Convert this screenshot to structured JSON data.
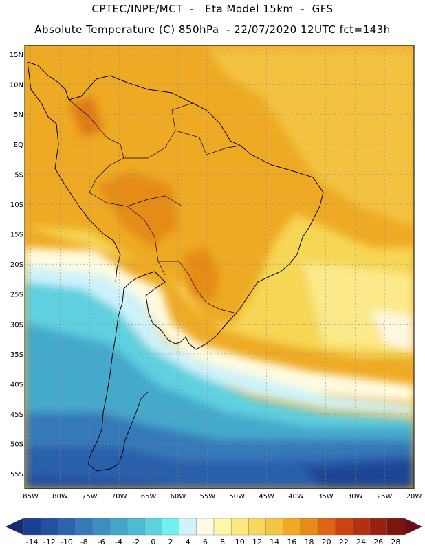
{
  "title_line1": "CPTEC/INPE/MCT  -   Eta Model 15km  -  GFS",
  "title_line2": "Absolute Temperature (C) 850hPa  - 22/07/2020 12UTC fct=143h",
  "map": {
    "lat_labels": [
      "15N",
      "10N",
      "5N",
      "EQ",
      "5S",
      "10S",
      "15S",
      "20S",
      "25S",
      "30S",
      "35S",
      "40S",
      "45S",
      "50S",
      "55S"
    ],
    "lat_values": [
      15,
      10,
      5,
      0,
      -5,
      -10,
      -15,
      -20,
      -25,
      -30,
      -35,
      -40,
      -45,
      -50,
      -55
    ],
    "lon_labels": [
      "85W",
      "80W",
      "75W",
      "70W",
      "65W",
      "60W",
      "55W",
      "50W",
      "45W",
      "40W",
      "35W",
      "30W",
      "25W",
      "20W"
    ],
    "lon_values": [
      -85,
      -80,
      -75,
      -70,
      -65,
      -60,
      -55,
      -50,
      -45,
      -40,
      -35,
      -30,
      -25,
      -20
    ],
    "lat_range": [
      -57.5,
      16.5
    ],
    "lon_range": [
      -86,
      -20
    ]
  },
  "colorbar": {
    "labels": [
      "-14",
      "-12",
      "-10",
      "-8",
      "-6",
      "-4",
      "-2",
      "0",
      "2",
      "4",
      "6",
      "8",
      "10",
      "12",
      "14",
      "16",
      "18",
      "20",
      "22",
      "24",
      "26",
      "28"
    ],
    "colors": [
      "#1c3f93",
      "#23509f",
      "#2c64ad",
      "#3579b9",
      "#3b8fc3",
      "#43a5c9",
      "#4fbbd2",
      "#5dd2de",
      "#70f0f0",
      "#cff3fb",
      "#fffae6",
      "#fdf7a8",
      "#fbe97c",
      "#f8d85c",
      "#f4c443",
      "#efaa1f",
      "#e88a14",
      "#e06410",
      "#cb4410",
      "#b4300e",
      "#9a2010",
      "#7c1410"
    ],
    "under_color": "#172c6e",
    "over_color": "#6e0a1a"
  }
}
